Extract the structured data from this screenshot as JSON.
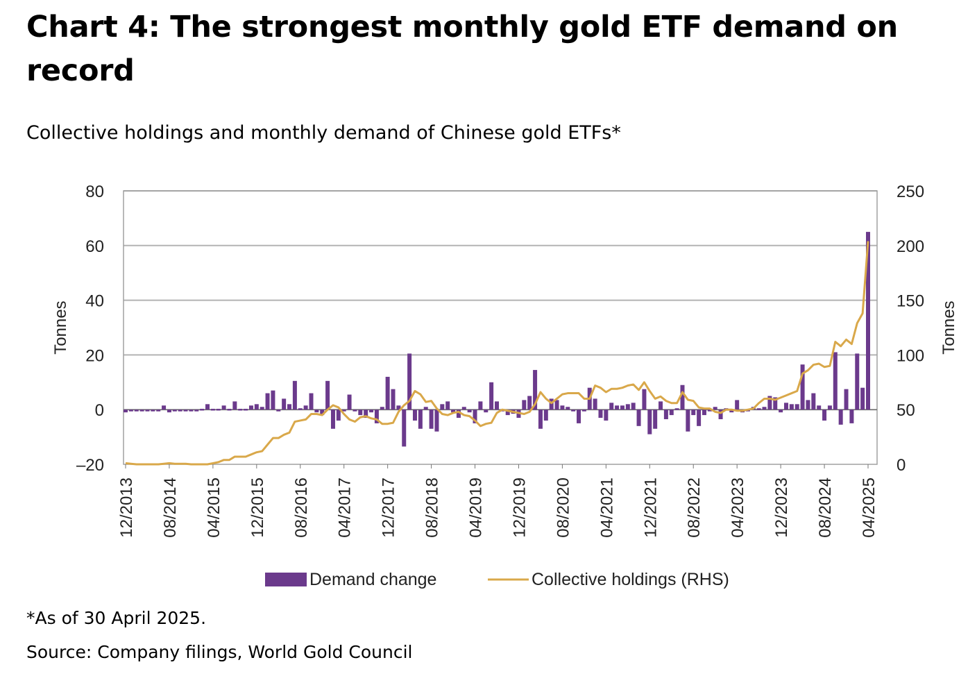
{
  "chart_data": {
    "type": "bar+line",
    "title": "Chart 4: The strongest monthly gold ETF demand on record",
    "subtitle": "Collective holdings and monthly demand of Chinese gold ETFs*",
    "ylabel": "Tonnes",
    "y2label": "Tonnes",
    "ylim": [
      -20,
      80
    ],
    "y2lim": [
      0,
      250
    ],
    "yticks": [
      "80",
      "60",
      "40",
      "20",
      "0",
      "-20"
    ],
    "y2ticks": [
      "250",
      "200",
      "150",
      "100",
      "50",
      "0"
    ],
    "grid": true,
    "legend_position": "bottom",
    "x_start": "12/2013",
    "x_end": "04/2025",
    "xtick_labels": [
      "12/2013",
      "08/2014",
      "04/2015",
      "12/2015",
      "08/2016",
      "04/2017",
      "12/2017",
      "08/2018",
      "04/2019",
      "12/2019",
      "08/2020",
      "04/2021",
      "12/2021",
      "08/2022",
      "04/2023",
      "12/2023",
      "08/2024",
      "04/2025"
    ],
    "series": [
      {
        "name": "Demand change",
        "type": "bar",
        "axis": "left",
        "color": "#6B3A8C",
        "values": [
          -1,
          -0.5,
          -0.5,
          -0.3,
          -0.3,
          -0.3,
          -0.3,
          1.5,
          -1,
          -0.3,
          -0.3,
          -0.3,
          -0.3,
          -0.3,
          0.3,
          2,
          0.3,
          0.3,
          1.5,
          0.3,
          3,
          0.3,
          0.3,
          1.5,
          2,
          1,
          6,
          7,
          -0.5,
          4,
          2,
          10.5,
          0.5,
          1.5,
          6,
          -1,
          -2,
          10.5,
          -7,
          -4,
          0,
          5.5,
          0,
          -2,
          -3,
          -1,
          -5,
          1,
          12,
          7.5,
          1.5,
          -13.5,
          20.5,
          -4,
          -7,
          1,
          -7,
          -8,
          2,
          3,
          -1,
          -3,
          1,
          -1,
          -5,
          3,
          -1,
          10,
          3,
          -0.5,
          -2,
          -1.5,
          -3,
          3.5,
          5,
          14.5,
          -7,
          -4,
          4,
          3.5,
          1.5,
          1,
          -0.5,
          -5,
          0,
          8,
          4,
          -3,
          -4,
          2.5,
          1.5,
          1.5,
          2,
          2.5,
          -6,
          7.5,
          -9,
          -7,
          3,
          -3.5,
          -2,
          0.5,
          9,
          -8,
          -2,
          -6,
          -2,
          -0.5,
          1,
          -3.5,
          0.5,
          -1,
          3.5,
          -1,
          -0.5,
          1,
          0.5,
          1,
          5,
          4.5,
          -1,
          2.5,
          2,
          2,
          16.5,
          3.5,
          6,
          1.5,
          -4,
          1.5,
          21,
          -5.5,
          7.5,
          -5,
          20.5,
          8,
          65
        ]
      },
      {
        "name": "Collective holdings (RHS)",
        "type": "line",
        "axis": "right",
        "color": "#D9A84A",
        "values": [
          1,
          0.5,
          0,
          0,
          0,
          0,
          0,
          0.5,
          1,
          0.5,
          0.5,
          0.5,
          0,
          0,
          0,
          0,
          1,
          2,
          4,
          4,
          7,
          7,
          7,
          9,
          11,
          12,
          18,
          24,
          24,
          27,
          29,
          39,
          40,
          41,
          46,
          46,
          45,
          50,
          54,
          52,
          46,
          41,
          39,
          43,
          44,
          42,
          41,
          37,
          37,
          38,
          48,
          54,
          58,
          67,
          64,
          57,
          58,
          51,
          46,
          45,
          47,
          48,
          45,
          44,
          40,
          35,
          37,
          38,
          47,
          50,
          49,
          48,
          47,
          46,
          48,
          55,
          66,
          60,
          56,
          60,
          64,
          65,
          65,
          65,
          60,
          60,
          72,
          70,
          66,
          69,
          69,
          70,
          72,
          73,
          68,
          75,
          67,
          60,
          62,
          58,
          56,
          56,
          66,
          59,
          58,
          52,
          51,
          51,
          48,
          47,
          50,
          50,
          49,
          49,
          50,
          51,
          56,
          60,
          60,
          59,
          61,
          63,
          65,
          67,
          83,
          86,
          91,
          92,
          89,
          90,
          112,
          108,
          114,
          110,
          129,
          138,
          204
        ]
      }
    ]
  },
  "legend": {
    "bar_label": "Demand change",
    "line_label": "Collective holdings (RHS)"
  },
  "footnote": "*As of 30 April 2025.",
  "source": "Source: Company filings, World Gold Council"
}
